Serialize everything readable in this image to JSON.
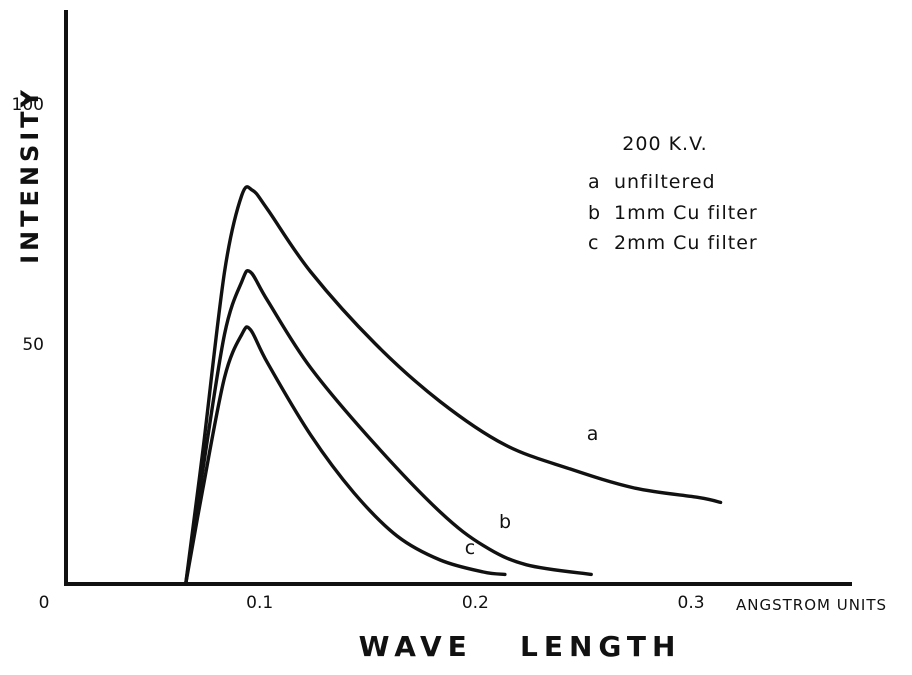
{
  "chart_data": {
    "type": "line",
    "title": "",
    "xlabel": "WAVE   LENGTH",
    "x_unit_label": "ANGSTROM UNITS",
    "ylabel": "INTENSITY",
    "xlim": [
      0,
      0.37
    ],
    "ylim": [
      0,
      120
    ],
    "x_ticks": [
      {
        "value": 0,
        "label": "0"
      },
      {
        "value": 0.1,
        "label": "0.1"
      },
      {
        "value": 0.2,
        "label": "0.2"
      },
      {
        "value": 0.3,
        "label": "0.3"
      }
    ],
    "y_ticks": [
      {
        "value": 50,
        "label": "50"
      },
      {
        "value": 100,
        "label": "100"
      }
    ],
    "grid": false,
    "legend": {
      "title": "200 K.V.",
      "position": "top-right",
      "items": [
        {
          "key": "a",
          "text": "unfiltered"
        },
        {
          "key": "b",
          "text": "1mm Cu filter"
        },
        {
          "key": "c",
          "text": "2mm Cu filter"
        }
      ]
    },
    "series": [
      {
        "name": "a",
        "label": "a",
        "label_at": [
          0.16,
          29
        ],
        "x": [
          0.062,
          0.07,
          0.08,
          0.088,
          0.093,
          0.1,
          0.12,
          0.15,
          0.18,
          0.21,
          0.24,
          0.27,
          0.3,
          0.31
        ],
        "y": [
          0,
          28,
          65,
          81,
          82,
          78,
          65,
          50,
          38,
          29,
          24,
          20,
          18,
          17
        ]
      },
      {
        "name": "b",
        "label": "b",
        "label_at": [
          0.21,
          12
        ],
        "x": [
          0.062,
          0.07,
          0.08,
          0.088,
          0.092,
          0.1,
          0.12,
          0.15,
          0.18,
          0.2,
          0.22,
          0.25
        ],
        "y": [
          0,
          24,
          52,
          63,
          65,
          59,
          45,
          29,
          15,
          8,
          4,
          2
        ]
      },
      {
        "name": "c",
        "label": "c",
        "label_at": [
          0.19,
          8
        ],
        "x": [
          0.062,
          0.07,
          0.08,
          0.088,
          0.092,
          0.1,
          0.12,
          0.14,
          0.16,
          0.18,
          0.2,
          0.21
        ],
        "y": [
          0,
          20,
          43,
          52,
          53,
          46,
          31,
          19,
          10,
          5,
          2.5,
          2
        ]
      }
    ]
  }
}
